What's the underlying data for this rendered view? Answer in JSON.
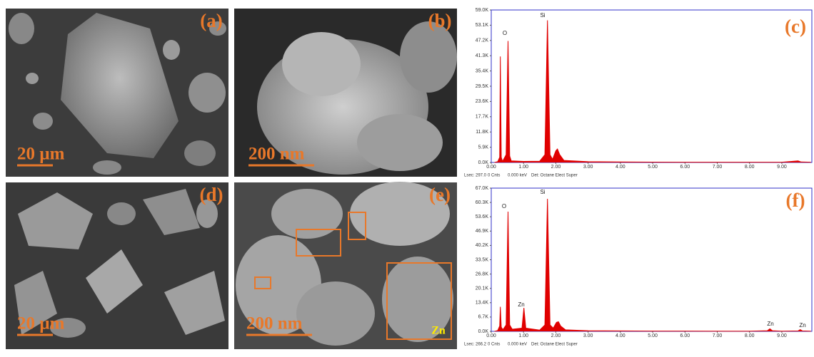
{
  "images": [
    {
      "label": "(a)",
      "scale_bar": "20 µm"
    },
    {
      "label": "(b)",
      "scale_bar": "200 nm"
    },
    {
      "label": "(d)",
      "scale_bar": "20 µm"
    },
    {
      "label": "(e)",
      "scale_bar": "200 nm",
      "element": "Zn"
    }
  ],
  "chart_data": [
    {
      "type": "area",
      "panel_label": "(c)",
      "color": "#e00000",
      "x": [
        0.1,
        0.2,
        0.26,
        0.28,
        0.31,
        0.35,
        0.46,
        0.52,
        0.57,
        0.62,
        1.0,
        1.5,
        1.66,
        1.74,
        1.82,
        1.9,
        2.0,
        2.05,
        2.12,
        2.25,
        3,
        4,
        5,
        6,
        7,
        8,
        9,
        9.5,
        9.6,
        9.9
      ],
      "values": [
        0,
        300,
        2000,
        41000,
        2000,
        400,
        3000,
        47000,
        2500,
        600,
        400,
        500,
        3000,
        55000,
        3000,
        1200,
        4500,
        5200,
        3000,
        800,
        300,
        200,
        150,
        120,
        100,
        100,
        100,
        600,
        200,
        100
      ],
      "xlim": [
        0,
        9.93
      ],
      "ylim": [
        0,
        59000
      ],
      "xticks": [
        {
          "value": 0,
          "label": "0.00"
        },
        {
          "value": 1,
          "label": "1.00"
        },
        {
          "value": 2,
          "label": "2.00"
        },
        {
          "value": 3,
          "label": "3.00"
        },
        {
          "value": 4,
          "label": "4.00"
        },
        {
          "value": 5,
          "label": "5.00"
        },
        {
          "value": 6,
          "label": "6.00"
        },
        {
          "value": 7,
          "label": "7.00"
        },
        {
          "value": 8,
          "label": "8.00"
        },
        {
          "value": 9,
          "label": "9.00"
        }
      ],
      "yticks": [
        {
          "value": 0,
          "label": "0.0K"
        },
        {
          "value": 5900,
          "label": "5.9K"
        },
        {
          "value": 11800,
          "label": "11.8K"
        },
        {
          "value": 17700,
          "label": "17.7K"
        },
        {
          "value": 23600,
          "label": "23.6K"
        },
        {
          "value": 29500,
          "label": "29.5K"
        },
        {
          "value": 35400,
          "label": "35.4K"
        },
        {
          "value": 41300,
          "label": "41.3K"
        },
        {
          "value": 47200,
          "label": "47.2K"
        },
        {
          "value": 53100,
          "label": "53.1K"
        },
        {
          "value": 59000,
          "label": "59.0K"
        }
      ],
      "annotations": [
        "O",
        "Si"
      ],
      "footer": [
        "Lsec: 297.0",
        "0 Cnts",
        "0.000 keV",
        "Det: Octane Elect Super"
      ]
    },
    {
      "type": "area",
      "panel_label": "(f)",
      "color": "#e00000",
      "x": [
        0.1,
        0.2,
        0.26,
        0.28,
        0.31,
        0.36,
        0.46,
        0.52,
        0.57,
        0.65,
        0.95,
        1.01,
        1.07,
        1.5,
        1.66,
        1.74,
        1.82,
        1.92,
        2.02,
        2.08,
        2.15,
        2.3,
        3,
        4,
        5,
        6,
        7,
        8,
        8.55,
        8.63,
        8.71,
        9.0,
        9.5,
        9.57,
        9.64,
        9.9
      ],
      "values": [
        0,
        400,
        2500,
        11500,
        2000,
        800,
        3000,
        56000,
        3000,
        1000,
        1500,
        11000,
        1500,
        600,
        3000,
        62000,
        3000,
        1500,
        4200,
        4500,
        2500,
        700,
        300,
        200,
        150,
        120,
        100,
        100,
        300,
        1200,
        300,
        100,
        200,
        800,
        200,
        100
      ],
      "xlim": [
        0,
        9.93
      ],
      "ylim": [
        0,
        67000
      ],
      "xticks": [
        {
          "value": 0,
          "label": "0.00"
        },
        {
          "value": 1,
          "label": "1.00"
        },
        {
          "value": 2,
          "label": "2.00"
        },
        {
          "value": 3,
          "label": "3.00"
        },
        {
          "value": 4,
          "label": "4.00"
        },
        {
          "value": 5,
          "label": "5.00"
        },
        {
          "value": 6,
          "label": "6.00"
        },
        {
          "value": 7,
          "label": "7.00"
        },
        {
          "value": 8,
          "label": "8.00"
        },
        {
          "value": 9,
          "label": "9.00"
        }
      ],
      "yticks": [
        {
          "value": 0,
          "label": "0.0K"
        },
        {
          "value": 6700,
          "label": "6.7K"
        },
        {
          "value": 13400,
          "label": "13.4K"
        },
        {
          "value": 20100,
          "label": "20.1K"
        },
        {
          "value": 26800,
          "label": "26.8K"
        },
        {
          "value": 33500,
          "label": "33.5K"
        },
        {
          "value": 40200,
          "label": "40.2K"
        },
        {
          "value": 46900,
          "label": "46.9K"
        },
        {
          "value": 53600,
          "label": "53.6K"
        },
        {
          "value": 60300,
          "label": "60.3K"
        },
        {
          "value": 67000,
          "label": "67.0K"
        }
      ],
      "annotations": [
        "O",
        "Si",
        "Zn",
        "Zn",
        "Zn"
      ],
      "footer": [
        "Lsec: 266.2",
        "0 Cnts",
        "0.000 keV",
        "Det: Octane Elect Super"
      ]
    }
  ]
}
